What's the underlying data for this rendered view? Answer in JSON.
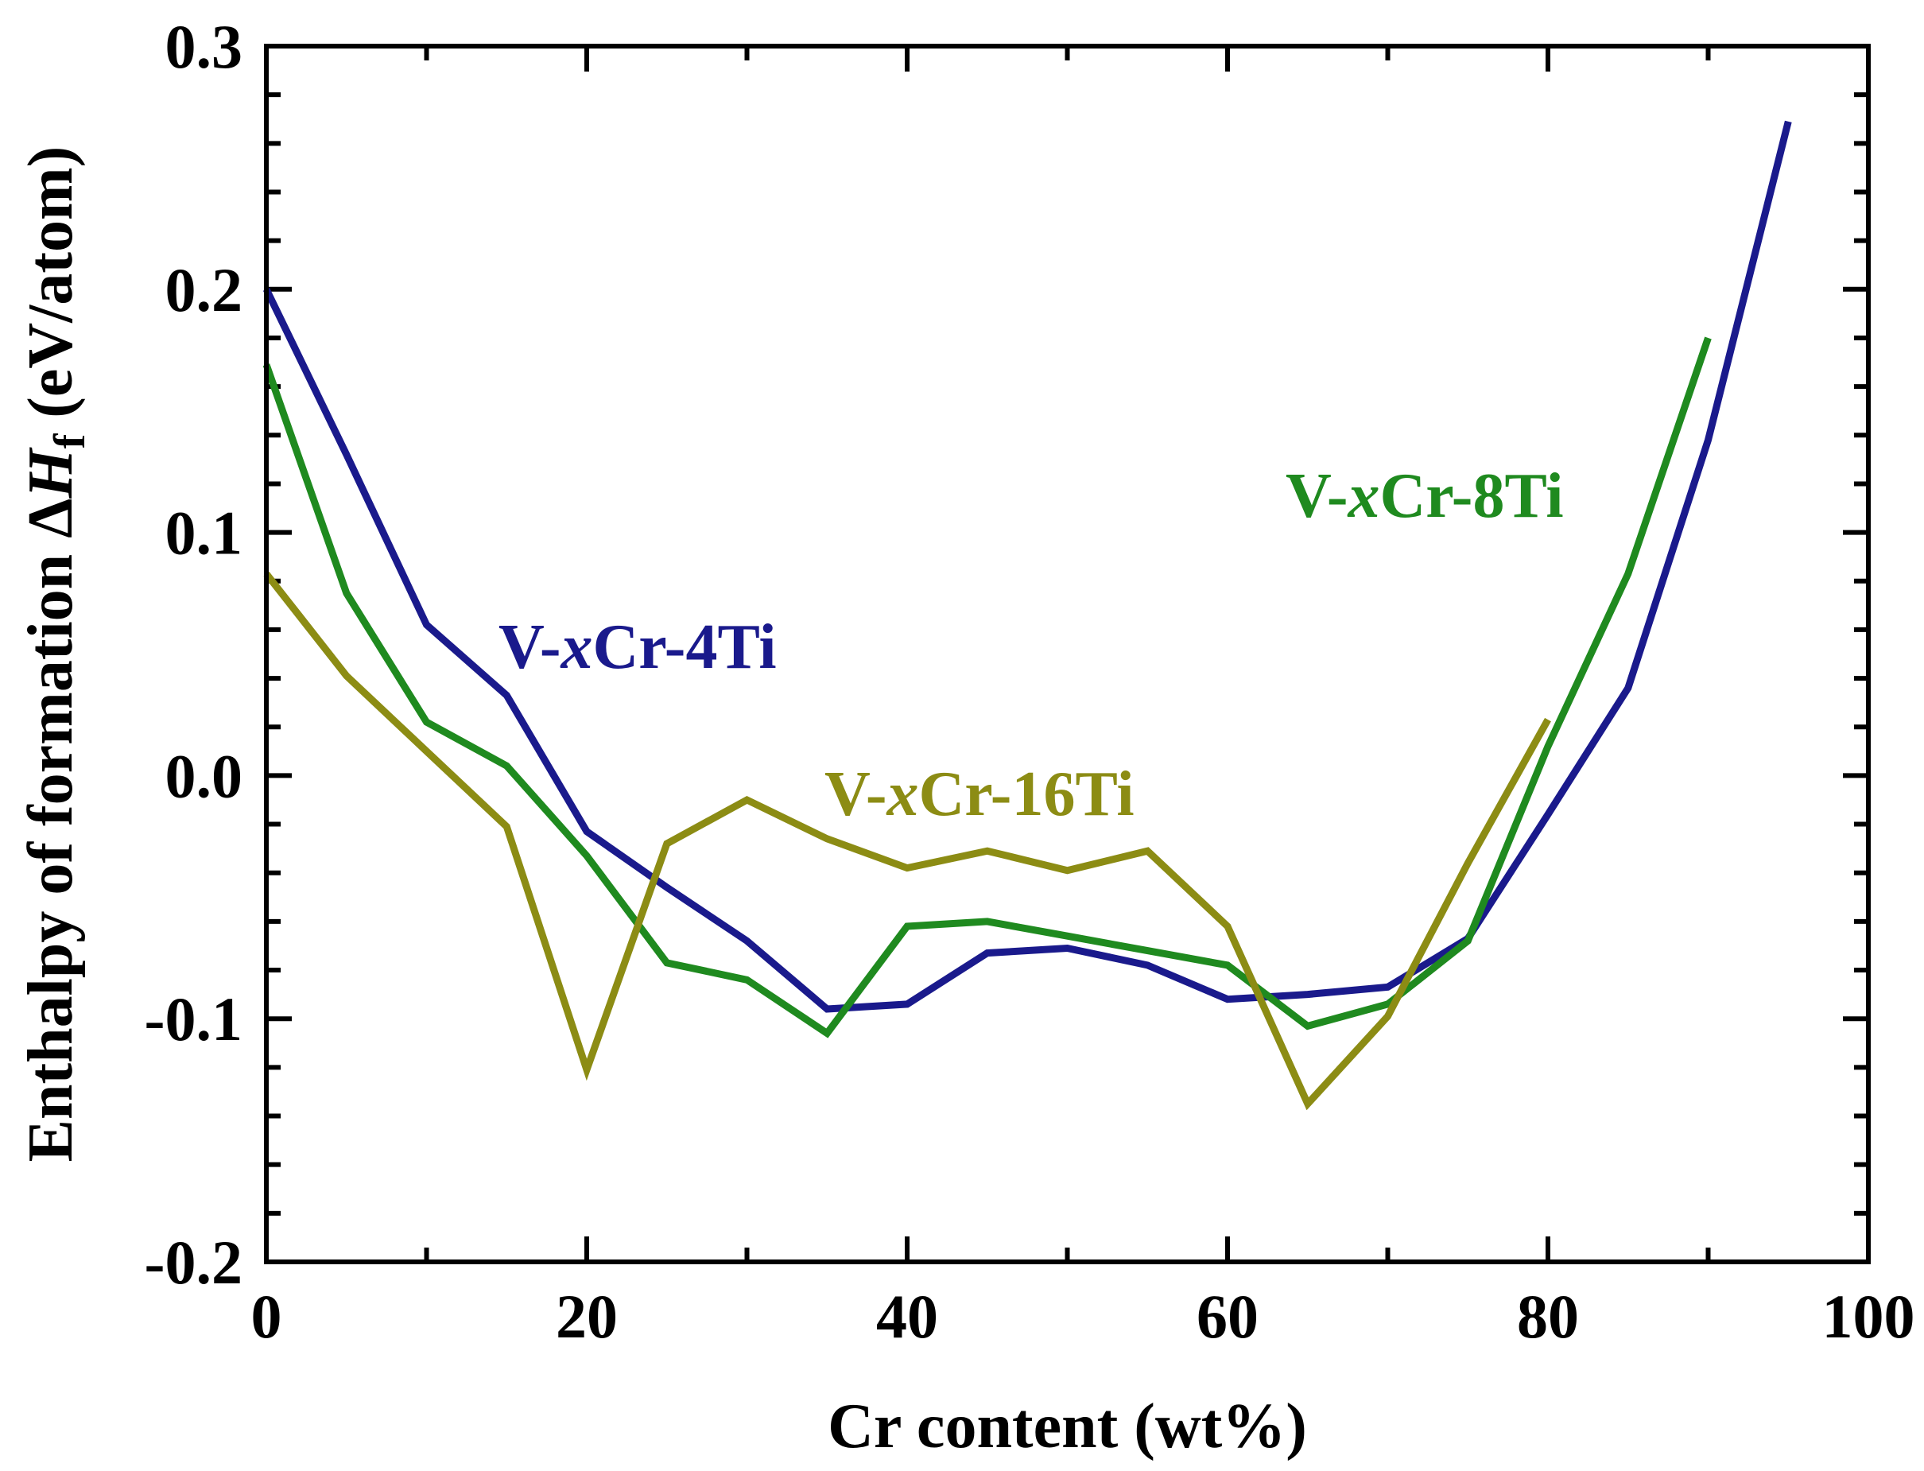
{
  "chart_data": {
    "type": "line",
    "title": "",
    "xlabel": "Cr content (wt%)",
    "ylabel": {
      "prefix": "Enthalpy of formation Δ",
      "symbol": "H",
      "subscript": "f",
      "suffix": " (eV/atom)"
    },
    "xlim": [
      0,
      100
    ],
    "ylim": [
      -0.2,
      0.3
    ],
    "xticks": [
      0,
      20,
      40,
      60,
      80,
      100
    ],
    "xtick_labels": [
      "0",
      "20",
      "40",
      "60",
      "80",
      "100"
    ],
    "yticks": [
      -0.2,
      -0.1,
      0.0,
      0.1,
      0.2,
      0.3
    ],
    "ytick_labels": [
      "-0.2",
      "-0.1",
      "0.0",
      "0.1",
      "0.2",
      "0.3"
    ],
    "grid": false,
    "series": [
      {
        "name": "V-xCr-4Ti",
        "label_parts": [
          "V-",
          "x",
          "Cr-4Ti"
        ],
        "color": "#1a1a8c",
        "x": [
          0,
          5,
          10,
          15,
          20,
          25,
          30,
          35,
          40,
          45,
          50,
          55,
          60,
          65,
          70,
          75,
          80,
          85,
          90,
          95
        ],
        "values": [
          0.2,
          0.132,
          0.062,
          0.033,
          -0.023,
          -0.046,
          -0.068,
          -0.096,
          -0.094,
          -0.073,
          -0.071,
          -0.078,
          -0.092,
          -0.09,
          -0.087,
          -0.067,
          -0.016,
          0.036,
          0.138,
          0.269
        ]
      },
      {
        "name": "V-xCr-8Ti",
        "label_parts": [
          "V-",
          "x",
          "Cr-8Ti"
        ],
        "color": "#1f8a1f",
        "x": [
          0,
          5,
          10,
          15,
          20,
          25,
          30,
          35,
          40,
          45,
          50,
          55,
          60,
          65,
          70,
          75,
          80,
          85,
          90
        ],
        "values": [
          0.169,
          0.075,
          0.022,
          0.004,
          -0.033,
          -0.077,
          -0.084,
          -0.106,
          -0.062,
          -0.06,
          -0.066,
          -0.072,
          -0.078,
          -0.103,
          -0.094,
          -0.068,
          0.012,
          0.083,
          0.18
        ]
      },
      {
        "name": "V-xCr-16Ti",
        "label_parts": [
          "V-",
          "x",
          "Cr-16Ti"
        ],
        "color": "#8c8c14",
        "x": [
          0,
          5,
          10,
          15,
          20,
          25,
          30,
          35,
          40,
          45,
          50,
          55,
          60,
          65,
          70,
          75,
          80
        ],
        "values": [
          0.083,
          0.041,
          0.01,
          -0.021,
          -0.121,
          -0.028,
          -0.01,
          -0.026,
          -0.038,
          -0.031,
          -0.039,
          -0.031,
          -0.062,
          -0.135,
          -0.099,
          -0.036,
          0.023
        ]
      }
    ]
  }
}
